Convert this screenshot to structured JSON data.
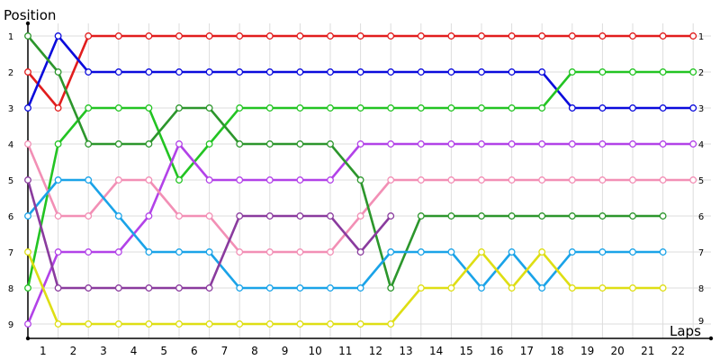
{
  "chart_data": {
    "type": "line",
    "title": "",
    "xlabel": "Laps",
    "ylabel": "Position",
    "x": [
      0,
      1,
      2,
      3,
      4,
      5,
      6,
      7,
      8,
      9,
      10,
      11,
      12,
      13,
      14,
      15,
      16,
      17,
      18,
      19,
      20,
      21,
      22
    ],
    "x_tick_labels": [
      "1",
      "2",
      "3",
      "4",
      "5",
      "6",
      "7",
      "8",
      "9",
      "10",
      "11",
      "12",
      "13",
      "14",
      "15",
      "16",
      "17",
      "18",
      "19",
      "20",
      "21",
      "22"
    ],
    "y_tick_labels": [
      "1",
      "2",
      "3",
      "4",
      "5",
      "6",
      "7",
      "8",
      "9"
    ],
    "ylim": [
      1,
      9
    ],
    "y_inverted": true,
    "grid": true,
    "legend": "none",
    "series": [
      {
        "color": "#e11d1d",
        "values": [
          2,
          3,
          1,
          1,
          1,
          1,
          1,
          1,
          1,
          1,
          1,
          1,
          1,
          1,
          1,
          1,
          1,
          1,
          1,
          1,
          1,
          1,
          1
        ]
      },
      {
        "color": "#0b0bdc",
        "values": [
          3,
          1,
          2,
          2,
          2,
          2,
          2,
          2,
          2,
          2,
          2,
          2,
          2,
          2,
          2,
          2,
          2,
          2,
          3,
          3,
          3,
          3,
          3
        ]
      },
      {
        "color": "#23c423",
        "values": [
          8,
          4,
          3,
          3,
          3,
          5,
          4,
          3,
          3,
          3,
          3,
          3,
          3,
          3,
          3,
          3,
          3,
          3,
          2,
          2,
          2,
          2,
          2
        ]
      },
      {
        "color": "#b242e8",
        "values": [
          9,
          7,
          7,
          7,
          6,
          4,
          5,
          5,
          5,
          5,
          5,
          4,
          4,
          4,
          4,
          4,
          4,
          4,
          4,
          4,
          4,
          4,
          4
        ]
      },
      {
        "color": "#f28fb5",
        "values": [
          4,
          6,
          6,
          5,
          5,
          6,
          6,
          7,
          7,
          7,
          7,
          6,
          5,
          5,
          5,
          5,
          5,
          5,
          5,
          5,
          5,
          5,
          5
        ]
      },
      {
        "color": "#2c962c",
        "values": [
          1,
          2,
          4,
          4,
          4,
          3,
          3,
          4,
          4,
          4,
          4,
          5,
          8,
          6,
          6,
          6,
          6,
          6,
          6,
          6,
          6,
          6,
          null
        ]
      },
      {
        "color": "#1aa3e8",
        "values": [
          6,
          5,
          5,
          6,
          7,
          7,
          7,
          8,
          8,
          8,
          8,
          8,
          7,
          7,
          7,
          8,
          7,
          8,
          7,
          7,
          7,
          7,
          null
        ]
      },
      {
        "color": "#8a3b9e",
        "values": [
          5,
          8,
          8,
          8,
          8,
          8,
          8,
          6,
          6,
          6,
          6,
          7,
          6,
          null,
          null,
          null,
          null,
          null,
          null,
          null,
          null,
          null,
          null
        ]
      },
      {
        "color": "#dede14",
        "values": [
          7,
          9,
          9,
          9,
          9,
          9,
          9,
          9,
          9,
          9,
          9,
          9,
          9,
          8,
          8,
          7,
          8,
          7,
          8,
          8,
          8,
          8,
          null
        ]
      }
    ]
  }
}
